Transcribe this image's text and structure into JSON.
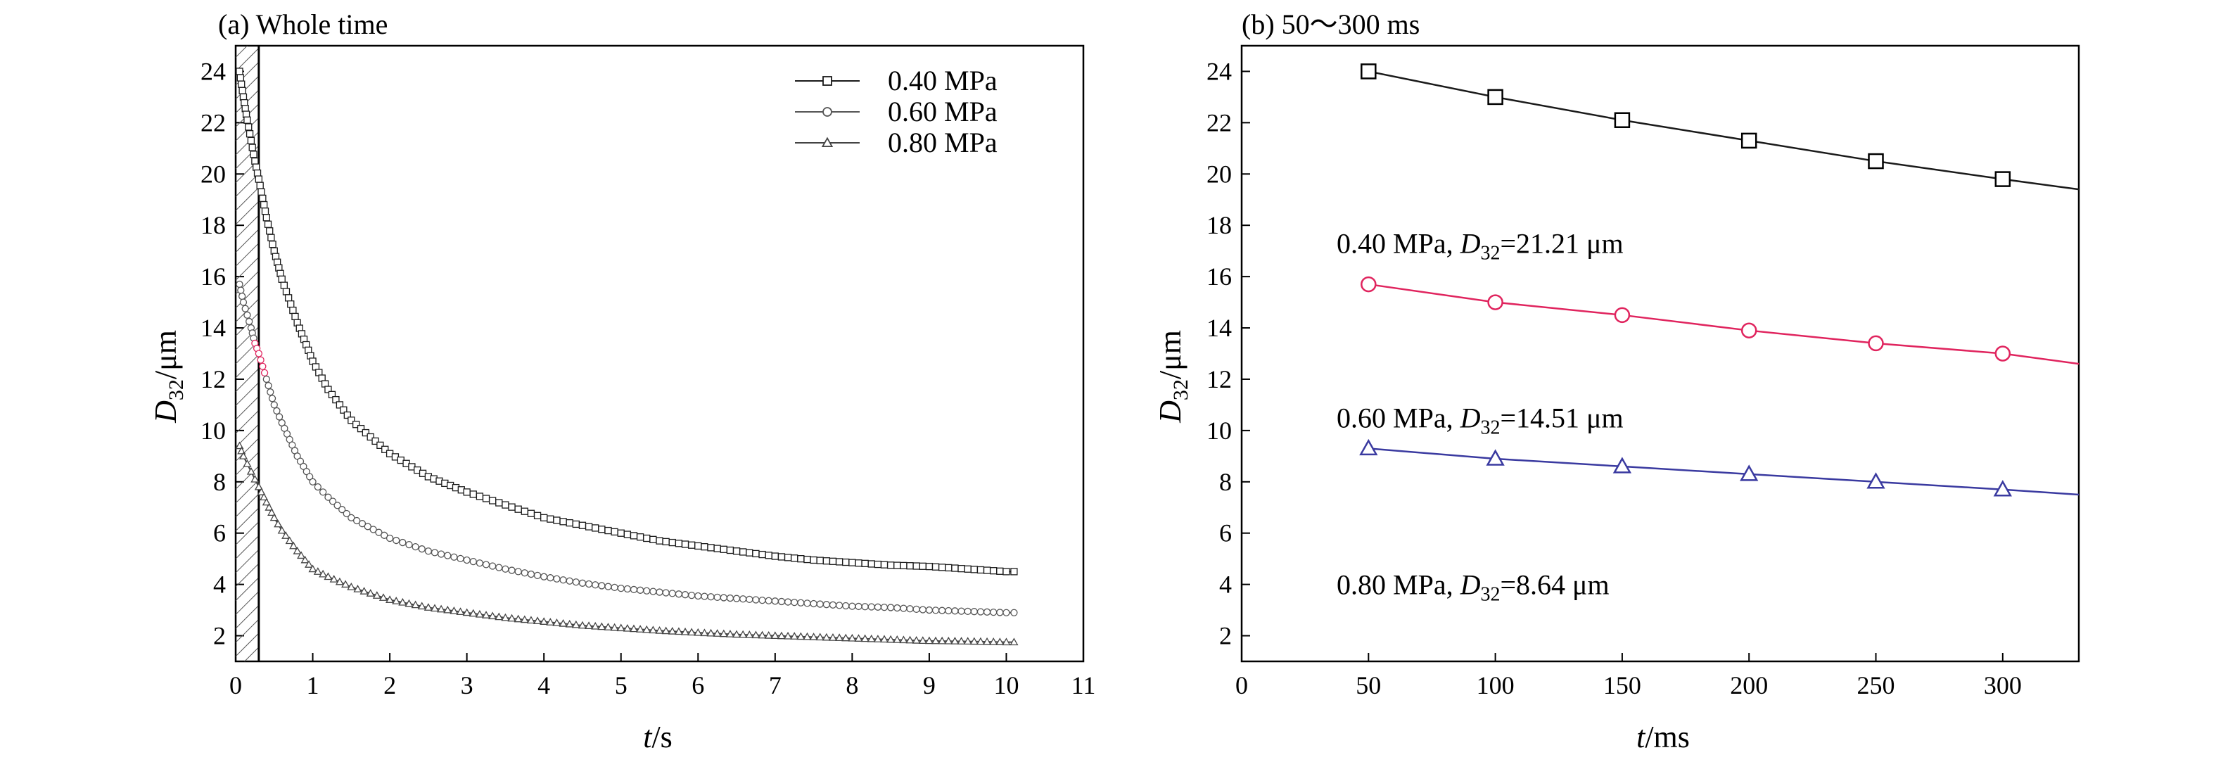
{
  "colors": {
    "p040": "#1a1a1a",
    "p060": "#e0245e",
    "p080": "#3a3aa0",
    "p060_dark": "#555555",
    "p080_dark": "#444444"
  },
  "chart_data": [
    {
      "type": "line",
      "panel_title": "(a) Whole time",
      "xlabel_var": "t",
      "xlabel_unit": "/s",
      "ylabel_var": "D",
      "ylabel_sub": "32",
      "ylabel_unit": "/μm",
      "xlim": [
        0,
        11
      ],
      "ylim": [
        1,
        25
      ],
      "xticks": [
        "0",
        "1",
        "2",
        "3",
        "4",
        "5",
        "6",
        "7",
        "8",
        "9",
        "10",
        "11"
      ],
      "yticks": [
        "2",
        "4",
        "6",
        "8",
        "10",
        "12",
        "14",
        "16",
        "18",
        "20",
        "22",
        "24"
      ],
      "shaded_region_x": [
        0,
        0.3
      ],
      "legend_position": "top-right",
      "series": [
        {
          "name": "0.40 MPa",
          "marker": "square",
          "x": [
            0.05,
            0.1,
            0.15,
            0.2,
            0.25,
            0.3,
            0.4,
            0.5,
            0.6,
            0.8,
            1.0,
            1.2,
            1.5,
            2.0,
            2.5,
            3.0,
            3.5,
            4.0,
            4.5,
            5.0,
            5.5,
            6.0,
            6.5,
            7.0,
            7.5,
            8.0,
            8.5,
            9.0,
            9.5,
            10.0,
            10.1
          ],
          "y": [
            24.0,
            23.0,
            22.1,
            21.3,
            20.5,
            19.8,
            18.3,
            17.0,
            15.9,
            14.2,
            12.7,
            11.6,
            10.4,
            9.1,
            8.2,
            7.6,
            7.1,
            6.6,
            6.3,
            6.0,
            5.7,
            5.5,
            5.3,
            5.1,
            4.95,
            4.85,
            4.75,
            4.7,
            4.6,
            4.5,
            4.5
          ]
        },
        {
          "name": "0.60 MPa",
          "marker": "circle",
          "x": [
            0.05,
            0.1,
            0.15,
            0.2,
            0.25,
            0.3,
            0.4,
            0.5,
            0.6,
            0.8,
            1.0,
            1.2,
            1.5,
            2.0,
            2.5,
            3.0,
            3.5,
            4.0,
            4.5,
            5.0,
            5.5,
            6.0,
            6.5,
            7.0,
            7.5,
            8.0,
            8.5,
            9.0,
            9.5,
            10.0,
            10.1
          ],
          "y": [
            15.7,
            15.0,
            14.5,
            14.0,
            13.4,
            13.0,
            12.0,
            11.0,
            10.3,
            9.0,
            8.0,
            7.4,
            6.6,
            5.8,
            5.3,
            4.95,
            4.6,
            4.3,
            4.05,
            3.85,
            3.7,
            3.55,
            3.45,
            3.35,
            3.25,
            3.15,
            3.1,
            3.0,
            2.95,
            2.9,
            2.9
          ]
        },
        {
          "name": "0.80 MPa",
          "marker": "triangle",
          "x": [
            0.05,
            0.1,
            0.15,
            0.2,
            0.25,
            0.3,
            0.4,
            0.5,
            0.6,
            0.8,
            1.0,
            1.2,
            1.5,
            2.0,
            2.5,
            3.0,
            3.5,
            4.0,
            4.5,
            5.0,
            5.5,
            6.0,
            6.5,
            7.0,
            7.5,
            8.0,
            8.5,
            9.0,
            9.5,
            10.0,
            10.1
          ],
          "y": [
            9.4,
            9.0,
            8.7,
            8.4,
            8.1,
            7.8,
            7.2,
            6.6,
            6.1,
            5.3,
            4.6,
            4.3,
            3.9,
            3.4,
            3.1,
            2.9,
            2.7,
            2.55,
            2.4,
            2.3,
            2.2,
            2.12,
            2.05,
            2.0,
            1.95,
            1.9,
            1.85,
            1.8,
            1.78,
            1.75,
            1.75
          ]
        }
      ]
    },
    {
      "type": "line",
      "panel_title": "(b) 50～300 ms",
      "xlabel_var": "t",
      "xlabel_unit": "/ms",
      "ylabel_var": "D",
      "ylabel_sub": "32",
      "ylabel_unit": "/μm",
      "xlim": [
        0,
        330
      ],
      "ylim": [
        1,
        25
      ],
      "xticks": [
        "0",
        "50",
        "100",
        "150",
        "200",
        "250",
        "300"
      ],
      "yticks": [
        "2",
        "4",
        "6",
        "8",
        "10",
        "12",
        "14",
        "16",
        "18",
        "20",
        "22",
        "24"
      ],
      "series": [
        {
          "name": "0.40 MPa",
          "marker": "square",
          "x": [
            50,
            100,
            150,
            200,
            250,
            300
          ],
          "y": [
            24.0,
            23.0,
            22.1,
            21.3,
            20.5,
            19.8
          ],
          "line_end": [
            330,
            19.4
          ],
          "annotation_prefix": "0.40 MPa, ",
          "annotation_var": "D",
          "annotation_sub": "32",
          "annotation_value": "=21.21 μm"
        },
        {
          "name": "0.60 MPa",
          "marker": "circle",
          "x": [
            50,
            100,
            150,
            200,
            250,
            300
          ],
          "y": [
            15.7,
            15.0,
            14.5,
            13.9,
            13.4,
            13.0
          ],
          "line_end": [
            330,
            12.6
          ],
          "annotation_prefix": "0.60 MPa, ",
          "annotation_var": "D",
          "annotation_sub": "32",
          "annotation_value": "=14.51 μm"
        },
        {
          "name": "0.80 MPa",
          "marker": "triangle",
          "x": [
            50,
            100,
            150,
            200,
            250,
            300
          ],
          "y": [
            9.3,
            8.9,
            8.6,
            8.3,
            8.0,
            7.7
          ],
          "line_end": [
            330,
            7.5
          ],
          "annotation_prefix": "0.80 MPa, ",
          "annotation_var": "D",
          "annotation_sub": "32",
          "annotation_value": "=8.64 μm"
        }
      ]
    }
  ]
}
